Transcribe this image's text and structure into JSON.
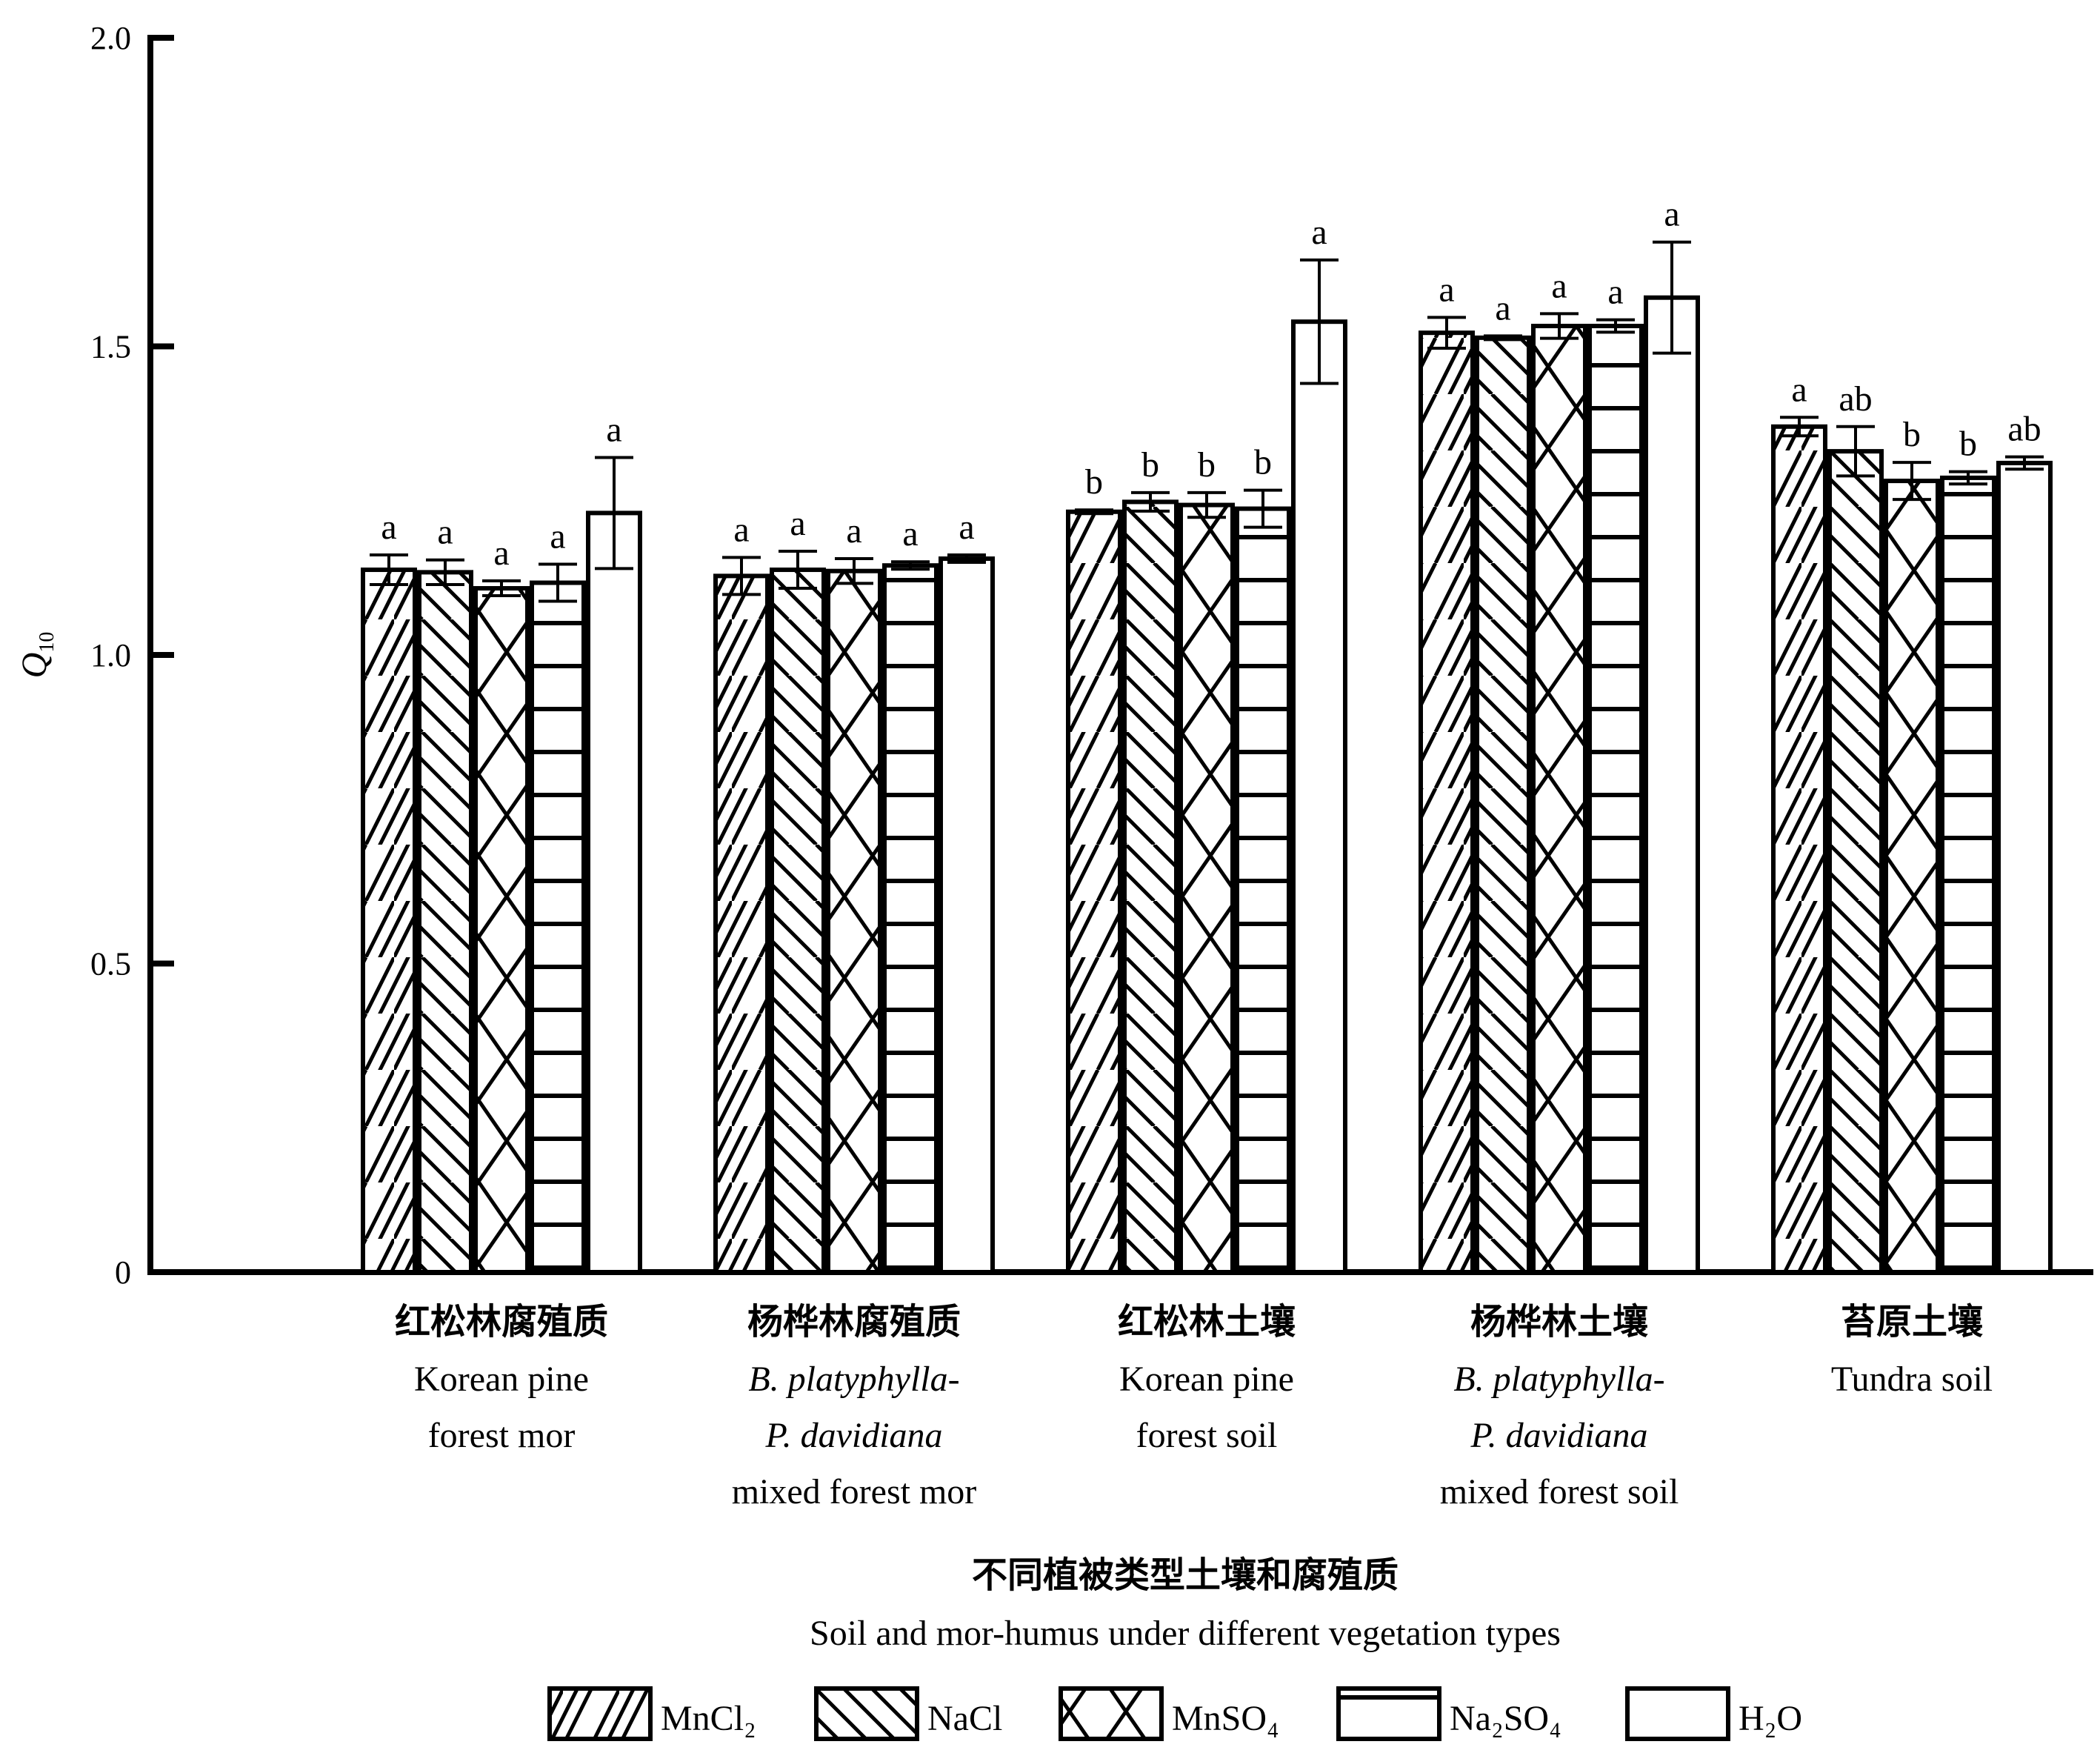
{
  "chart_data": {
    "type": "bar",
    "ylabel": "Q10",
    "ylabel_main": "Q",
    "ylabel_sub": "10",
    "ylim": [
      0,
      2.0
    ],
    "yticks": [
      "0",
      "0.5",
      "1.0",
      "1.5",
      "2.0"
    ],
    "ytick_values": [
      0,
      0.5,
      1.0,
      1.5,
      2.0
    ],
    "xlabel_cn": "不同植被类型土壤和腐殖质",
    "xlabel_en": "Soil and mor-humus under different vegetation types",
    "categories": [
      {
        "cn": "红松林腐殖质",
        "en": [
          "Korean pine",
          "forest mor"
        ],
        "italic": [
          false,
          false
        ]
      },
      {
        "cn": "杨桦林腐殖质",
        "en": [
          "B. platyphylla-",
          "P. davidiana",
          "mixed forest mor"
        ],
        "italic": [
          true,
          true,
          false
        ]
      },
      {
        "cn": "红松林土壤",
        "en": [
          "Korean pine",
          "forest soil"
        ],
        "italic": [
          false,
          false
        ]
      },
      {
        "cn": "杨桦林土壤",
        "en": [
          "B. platyphylla-",
          "P. davidiana",
          "mixed forest soil"
        ],
        "italic": [
          true,
          true,
          false
        ]
      },
      {
        "cn": "苔原土壤",
        "en": [
          "Tundra soil"
        ],
        "italic": [
          false
        ]
      }
    ],
    "series": [
      {
        "name": "MnCl₂",
        "pattern": "fwd",
        "values": [
          1.138,
          1.128,
          1.232,
          1.522,
          1.37
        ],
        "errors": [
          0.024,
          0.03,
          0.003,
          0.025,
          0.015
        ],
        "letters": [
          "a",
          "a",
          "b",
          "a",
          "a"
        ]
      },
      {
        "name": "NaCl",
        "pattern": "back",
        "values": [
          1.134,
          1.138,
          1.248,
          1.514,
          1.33
        ],
        "errors": [
          0.02,
          0.03,
          0.015,
          0.003,
          0.04
        ],
        "letters": [
          "a",
          "a",
          "b",
          "a",
          "ab"
        ]
      },
      {
        "name": "MnSO₄",
        "pattern": "cross",
        "values": [
          1.108,
          1.136,
          1.243,
          1.533,
          1.282
        ],
        "errors": [
          0.012,
          0.02,
          0.02,
          0.02,
          0.03
        ],
        "letters": [
          "a",
          "a",
          "b",
          "a",
          "b"
        ]
      },
      {
        "name": "Na₂SO₄",
        "pattern": "horiz",
        "values": [
          1.117,
          1.145,
          1.237,
          1.533,
          1.287
        ],
        "errors": [
          0.03,
          0.006,
          0.03,
          0.01,
          0.01
        ],
        "letters": [
          "a",
          "a",
          "b",
          "a",
          "b"
        ]
      },
      {
        "name": "H₂O",
        "pattern": "none",
        "values": [
          1.23,
          1.156,
          1.54,
          1.579,
          1.311
        ],
        "errors": [
          0.09,
          0.006,
          0.1,
          0.09,
          0.01
        ],
        "letters": [
          "a",
          "a",
          "a",
          "a",
          "ab"
        ]
      }
    ],
    "legend_position": "bottom",
    "grid": false
  }
}
